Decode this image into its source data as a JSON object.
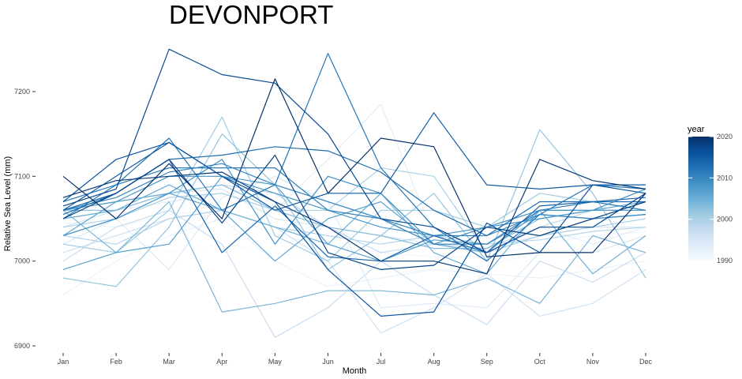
{
  "chart_data": {
    "type": "line",
    "title": "DEVONPORT",
    "xlabel": "Month",
    "ylabel": "Relative Sea Level (mm)",
    "categories": [
      "Jan",
      "Feb",
      "Mar",
      "Apr",
      "May",
      "Jun",
      "Jul",
      "Aug",
      "Sep",
      "Oct",
      "Nov",
      "Dec"
    ],
    "yticks": [
      6900,
      7000,
      7100,
      7200
    ],
    "ylim": [
      6890,
      7268
    ],
    "grid": false,
    "legend": {
      "title": "year",
      "type": "colorbar",
      "position": "right",
      "ticks": [
        1990,
        2000,
        2010,
        2020
      ],
      "min": 1990,
      "max": 2020,
      "color_low": "#f7fbff",
      "color_high": "#08306b"
    },
    "series": [
      {
        "year": 1990,
        "values": [
          7030,
          7030,
          7010,
          7020,
          7010,
          7000,
          6985,
          6990,
          6995,
          7010,
          7015,
          7020
        ]
      },
      {
        "year": 1991,
        "values": [
          7045,
          7040,
          7055,
          7060,
          7030,
          7020,
          7010,
          7005,
          7005,
          7020,
          7030,
          7035
        ]
      },
      {
        "year": 1992,
        "values": [
          6960,
          7000,
          7030,
          7050,
          7000,
          6970,
          6980,
          6990,
          6985,
          6980,
          6990,
          7000
        ]
      },
      {
        "year": 1993,
        "values": [
          7050,
          7060,
          7070,
          7080,
          7060,
          7120,
          7185,
          7030,
          7010,
          7040,
          7020,
          7040
        ]
      },
      {
        "year": 1994,
        "values": [
          7020,
          7050,
          6990,
          7075,
          7100,
          7070,
          6945,
          6950,
          6945,
          7010,
          7010,
          7030
        ]
      },
      {
        "year": 1995,
        "values": [
          7040,
          7060,
          7080,
          7085,
          7050,
          7040,
          7030,
          7020,
          7015,
          7030,
          7040,
          7040
        ]
      },
      {
        "year": 1996,
        "values": [
          7010,
          7030,
          7050,
          7060,
          7040,
          7000,
          6915,
          6945,
          6985,
          6935,
          6950,
          6990
        ]
      },
      {
        "year": 1997,
        "values": [
          7000,
          7040,
          7060,
          7020,
          6910,
          6945,
          7000,
          6960,
          6925,
          7000,
          6975,
          7010
        ]
      },
      {
        "year": 1998,
        "values": [
          7060,
          7070,
          7080,
          7090,
          7080,
          7040,
          7010,
          7020,
          7015,
          7040,
          7060,
          7060
        ]
      },
      {
        "year": 1999,
        "values": [
          7030,
          7020,
          7050,
          7060,
          7040,
          7030,
          7020,
          7030,
          7020,
          7025,
          7035,
          7040
        ]
      },
      {
        "year": 2000,
        "values": [
          7040,
          7050,
          7075,
          7080,
          7060,
          7060,
          7110,
          7100,
          7010,
          7030,
          7040,
          7050
        ]
      },
      {
        "year": 2001,
        "values": [
          7020,
          7010,
          7060,
          7170,
          7030,
          7000,
          7060,
          7060,
          7040,
          7080,
          7070,
          7060
        ]
      },
      {
        "year": 2002,
        "values": [
          6980,
          6970,
          7040,
          7150,
          7090,
          6990,
          7030,
          7080,
          7000,
          7155,
          7080,
          6980
        ]
      },
      {
        "year": 2003,
        "values": [
          7060,
          7060,
          7080,
          7090,
          7060,
          7040,
          7030,
          7015,
          7015,
          7050,
          7060,
          7060
        ]
      },
      {
        "year": 2004,
        "values": [
          7060,
          7010,
          7070,
          6940,
          6950,
          6965,
          6965,
          6960,
          6980,
          6950,
          7030,
          7010
        ]
      },
      {
        "year": 2005,
        "values": [
          7050,
          7060,
          7090,
          7060,
          7040,
          7020,
          7080,
          7010,
          6985,
          7060,
          6985,
          7030
        ]
      },
      {
        "year": 2006,
        "values": [
          7030,
          7070,
          7080,
          7060,
          7000,
          7050,
          7070,
          7020,
          7010,
          7060,
          7060,
          7070
        ]
      },
      {
        "year": 2007,
        "values": [
          6990,
          7010,
          7020,
          7100,
          7090,
          7020,
          7000,
          7025,
          7020,
          7055,
          7050,
          7055
        ]
      },
      {
        "year": 2008,
        "values": [
          7060,
          7070,
          7100,
          7100,
          7080,
          7060,
          7040,
          7030,
          7040,
          7050,
          7060,
          7060
        ]
      },
      {
        "year": 2009,
        "values": [
          7030,
          7050,
          7080,
          7120,
          7020,
          7100,
          7080,
          7020,
          7040,
          7060,
          7060,
          7085
        ]
      },
      {
        "year": 2010,
        "values": [
          7060,
          7075,
          7105,
          7115,
          7090,
          7070,
          7050,
          7030,
          7030,
          7055,
          7050,
          7055
        ]
      },
      {
        "year": 2011,
        "values": [
          7070,
          7090,
          7110,
          7110,
          7110,
          7060,
          7050,
          7020,
          7020,
          7060,
          7070,
          7060
        ]
      },
      {
        "year": 2012,
        "values": [
          7050,
          7090,
          7145,
          7060,
          7090,
          7245,
          7110,
          7040,
          7000,
          7055,
          7090,
          7085
        ]
      },
      {
        "year": 2013,
        "values": [
          7055,
          7080,
          7120,
          7125,
          7135,
          7130,
          7105,
          7060,
          7030,
          7070,
          7070,
          7070
        ]
      },
      {
        "year": 2014,
        "values": [
          7060,
          7080,
          7120,
          7010,
          7065,
          7005,
          7000,
          7030,
          7010,
          7065,
          7070,
          7075
        ]
      },
      {
        "year": 2015,
        "values": [
          7060,
          7100,
          7140,
          7100,
          7060,
          7080,
          7080,
          7175,
          7090,
          7085,
          7090,
          7090
        ]
      },
      {
        "year": 2016,
        "values": [
          7070,
          7120,
          7140,
          7100,
          7070,
          6990,
          6935,
          6940,
          7045,
          7010,
          7090,
          7080
        ]
      },
      {
        "year": 2017,
        "values": [
          7065,
          7085,
          7250,
          7220,
          7210,
          7150,
          7050,
          7040,
          7010,
          7040,
          7040,
          7080
        ]
      },
      {
        "year": 2018,
        "values": [
          7050,
          7080,
          7120,
          7045,
          7125,
          7010,
          6990,
          6995,
          7040,
          7030,
          7050,
          7070
        ]
      },
      {
        "year": 2019,
        "values": [
          7075,
          7095,
          7100,
          7105,
          7070,
          7040,
          7000,
          7000,
          6985,
          7120,
          7095,
          7085
        ]
      },
      {
        "year": 2020,
        "values": [
          7100,
          7050,
          7115,
          7050,
          7215,
          7080,
          7145,
          7135,
          7005,
          7010,
          7010,
          7080
        ]
      }
    ]
  }
}
